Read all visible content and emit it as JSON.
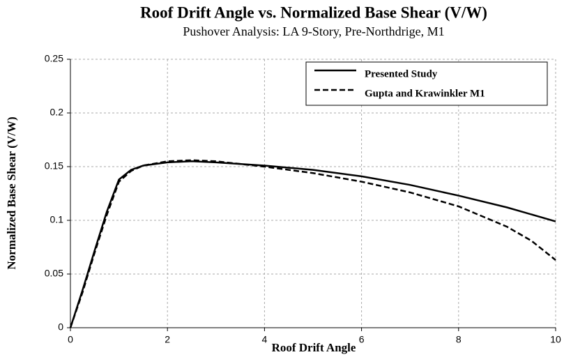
{
  "chart_data": {
    "type": "line",
    "title": "Roof Drift Angle vs. Normalized Base Shear (V/W)",
    "subtitle": "Pushover Analysis: LA 9-Story, Pre-Northdrige, M1",
    "x_label": "Roof Drift Angle",
    "y_label": "Normalized Base Shear (V/W)",
    "xlim": [
      0,
      10
    ],
    "xticks": [
      0,
      2,
      4,
      6,
      8,
      10
    ],
    "ylim": [
      0,
      0.25
    ],
    "yticks": [
      0,
      0.05,
      0.1,
      0.15,
      0.2,
      0.25
    ],
    "grid": true,
    "legend": "upper right",
    "series": [
      {
        "name": "Presented Study",
        "color": "#000000",
        "linestyle": "solid",
        "x": [
          0,
          0.25,
          0.5,
          0.75,
          1,
          1.25,
          1.5,
          2,
          2.5,
          3,
          4,
          5,
          6,
          7,
          8,
          9,
          10
        ],
        "values": [
          0,
          0.035,
          0.072,
          0.108,
          0.138,
          0.147,
          0.151,
          0.154,
          0.155,
          0.154,
          0.151,
          0.147,
          0.141,
          0.133,
          0.123,
          0.112,
          0.099
        ]
      },
      {
        "name": "Gupta and Krawinkler M1",
        "color": "#000000",
        "linestyle": "dashed",
        "x": [
          0,
          0.25,
          0.5,
          0.75,
          1,
          1.25,
          1.5,
          2,
          2.5,
          3,
          4,
          5,
          6,
          7,
          8,
          9,
          9.5,
          10
        ],
        "values": [
          0,
          0.033,
          0.07,
          0.105,
          0.136,
          0.146,
          0.151,
          0.155,
          0.156,
          0.155,
          0.15,
          0.144,
          0.136,
          0.126,
          0.113,
          0.094,
          0.081,
          0.063
        ]
      }
    ]
  }
}
